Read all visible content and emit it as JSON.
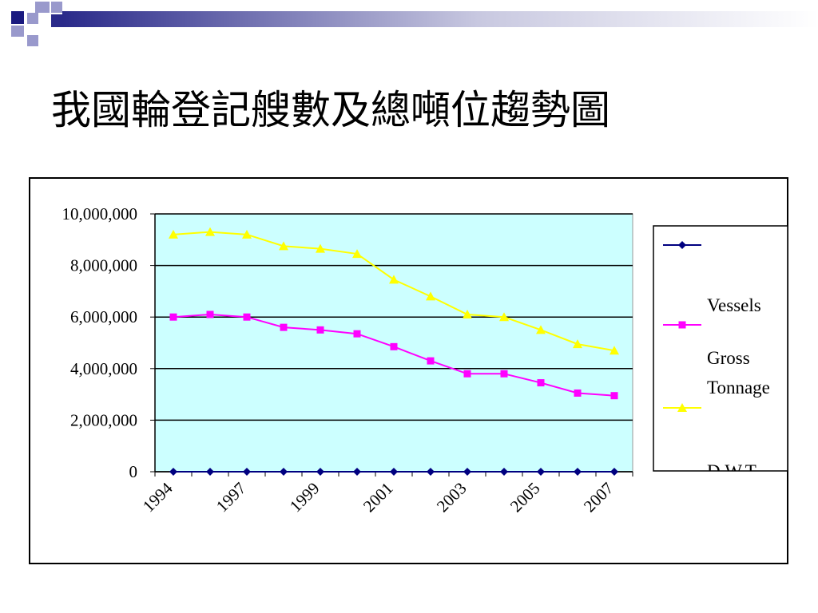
{
  "slide": {
    "title": "我國輪登記艘數及總噸位趨勢圖"
  },
  "colors": {
    "plot_bg": "#ccffff",
    "vessels": "#000080",
    "gross_tonnage": "#ff00ff",
    "dwt": "#ffff00",
    "deco_dark": "#1a1a80",
    "deco_light": "#9999cc"
  },
  "chart_data": {
    "type": "line",
    "title": "",
    "xlabel": "",
    "ylabel": "",
    "ylim": [
      0,
      10000000
    ],
    "yticks": [
      0,
      2000000,
      4000000,
      6000000,
      8000000,
      10000000
    ],
    "ytick_labels": [
      "0",
      "2,000,000",
      "4,000,000",
      "6,000,000",
      "8,000,000",
      "10,000,000"
    ],
    "x_tick_labels": [
      "1994",
      "1997",
      "1999",
      "2001",
      "2003",
      "2005",
      "2007"
    ],
    "grid": true,
    "legend_position": "right",
    "points_count": 13,
    "series": [
      {
        "name": "Vessels",
        "marker": "diamond",
        "values": [
          0,
          0,
          0,
          0,
          0,
          0,
          0,
          0,
          0,
          0,
          0,
          0,
          0
        ]
      },
      {
        "name": "Gross Tonnage",
        "marker": "square",
        "values": [
          6000000,
          6100000,
          6000000,
          5600000,
          5500000,
          5350000,
          4850000,
          4300000,
          3800000,
          3800000,
          3450000,
          3050000,
          2950000
        ]
      },
      {
        "name": "D.W.T",
        "marker": "triangle",
        "values": [
          9200000,
          9300000,
          9200000,
          8750000,
          8650000,
          8450000,
          7450000,
          6800000,
          6100000,
          6000000,
          5500000,
          4950000,
          4700000
        ]
      }
    ]
  }
}
